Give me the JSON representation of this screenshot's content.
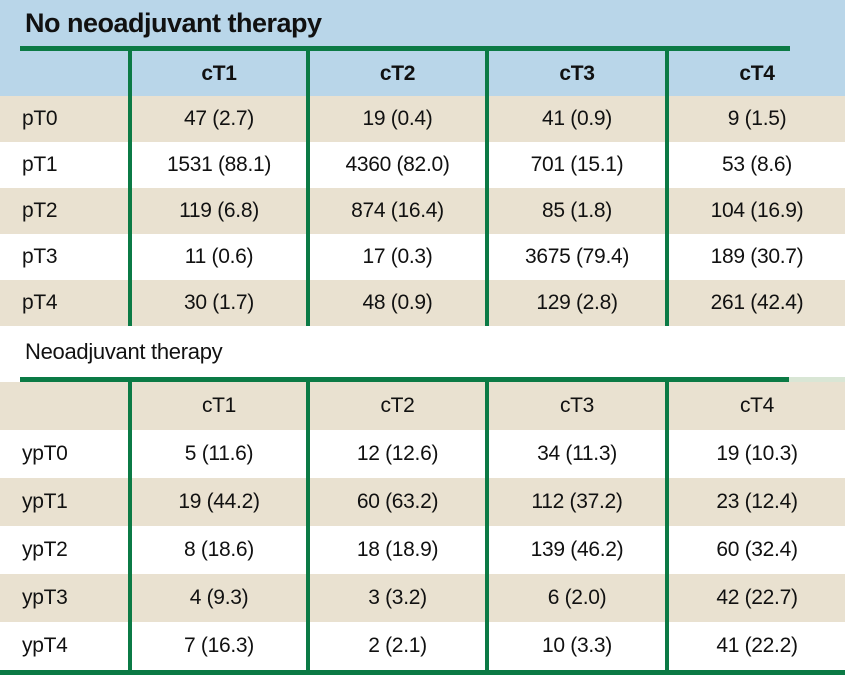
{
  "table1": {
    "title": "No neoadjuvant therapy",
    "columns": [
      "cT1",
      "cT2",
      "cT3",
      "cT4"
    ],
    "rows": [
      {
        "label": "pT0",
        "values": [
          "47 (2.7)",
          "19 (0.4)",
          "41 (0.9)",
          "9 (1.5)"
        ]
      },
      {
        "label": "pT1",
        "values": [
          "1531 (88.1)",
          "4360 (82.0)",
          "701 (15.1)",
          "53 (8.6)"
        ]
      },
      {
        "label": "pT2",
        "values": [
          "119 (6.8)",
          "874 (16.4)",
          "85 (1.8)",
          "104 (16.9)"
        ]
      },
      {
        "label": "pT3",
        "values": [
          "11 (0.6)",
          "17 (0.3)",
          "3675 (79.4)",
          "189 (30.7)"
        ]
      },
      {
        "label": "pT4",
        "values": [
          "30 (1.7)",
          "48 (0.9)",
          "129 (2.8)",
          "261 (42.4)"
        ]
      }
    ]
  },
  "table2": {
    "title": "Neoadjuvant therapy",
    "columns": [
      "cT1",
      "cT2",
      "cT3",
      "cT4"
    ],
    "rows": [
      {
        "label": "ypT0",
        "values": [
          "5 (11.6)",
          "12 (12.6)",
          "34 (11.3)",
          "19 (10.3)"
        ]
      },
      {
        "label": "ypT1",
        "values": [
          "19 (44.2)",
          "60 (63.2)",
          "112 (37.2)",
          "23 (12.4)"
        ]
      },
      {
        "label": "ypT2",
        "values": [
          "8 (18.6)",
          "18 (18.9)",
          "139 (46.2)",
          "60 (32.4)"
        ]
      },
      {
        "label": "ypT3",
        "values": [
          "4 (9.3)",
          "3 (3.2)",
          "6 (2.0)",
          "42 (22.7)"
        ]
      },
      {
        "label": "ypT4",
        "values": [
          "7 (16.3)",
          "2 (2.1)",
          "10 (3.3)",
          "41 (22.2)"
        ]
      }
    ]
  },
  "colors": {
    "header_blue": "#b9d6e9",
    "row_beige": "#e9e1d0",
    "line_green": "#0b7a45",
    "rule_tail_pale": "#d9e6d5",
    "text": "#111111"
  }
}
